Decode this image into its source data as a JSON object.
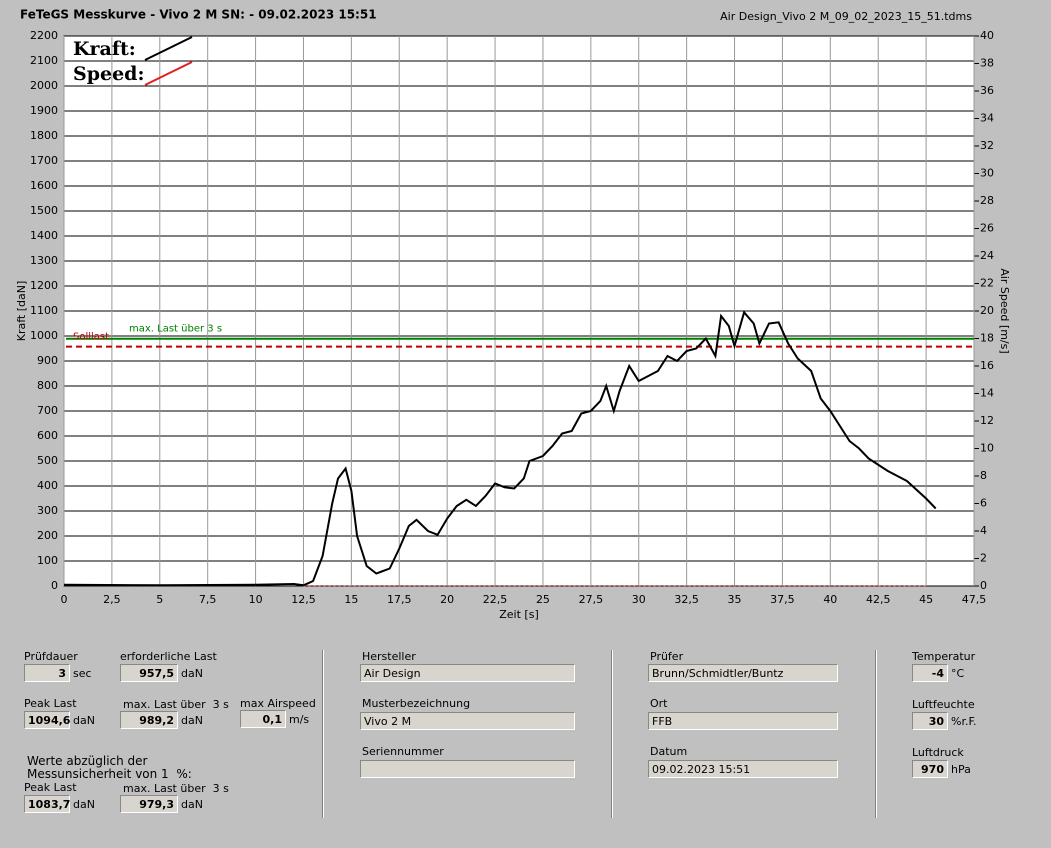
{
  "header": {
    "title": "FeTeGS Messkurve - Vivo 2 M  SN:  - 09.02.2023 15:51",
    "file": "Air Design_Vivo 2 M_09_02_2023_15_51.tdms"
  },
  "chart_data": {
    "type": "line",
    "xlabel": "Zeit [s]",
    "ylabel": "Kraft [daN]",
    "y2label": "Air Speed [m/s]",
    "grid": true,
    "xlim": [
      0,
      47.5
    ],
    "ylim": [
      0,
      2200
    ],
    "y2lim": [
      0,
      40
    ],
    "xticks": [
      0,
      {
        "value": 2.5,
        "label": "2,5"
      },
      5,
      {
        "value": 7.5,
        "label": "7,5"
      },
      10,
      {
        "value": 12.5,
        "label": "12,5"
      },
      15,
      {
        "value": 17.5,
        "label": "17,5"
      },
      20,
      {
        "value": 22.5,
        "label": "22,5"
      },
      25,
      {
        "value": 27.5,
        "label": "27,5"
      },
      30,
      {
        "value": 32.5,
        "label": "32,5"
      },
      35,
      {
        "value": 37.5,
        "label": "37,5"
      },
      40,
      {
        "value": 42.5,
        "label": "42,5"
      },
      45,
      {
        "value": 47.5,
        "label": "47,5"
      }
    ],
    "yticks": [
      0,
      100,
      200,
      300,
      400,
      500,
      600,
      700,
      800,
      900,
      1000,
      1100,
      1200,
      1300,
      1400,
      1500,
      1600,
      1700,
      1800,
      1900,
      2000,
      2100,
      2200
    ],
    "y2ticks": [
      0,
      2,
      4,
      6,
      8,
      10,
      12,
      14,
      16,
      18,
      20,
      22,
      24,
      26,
      28,
      30,
      32,
      34,
      36,
      38,
      40
    ],
    "series": [
      {
        "name": "Kraft:",
        "color": "#000000",
        "x": [
          0,
          5,
          10,
          12,
          12.5,
          13,
          13.5,
          14,
          14.3,
          14.7,
          15,
          15.3,
          15.8,
          16.3,
          17,
          17.5,
          18,
          18.4,
          19,
          19.5,
          20,
          20.5,
          21,
          21.5,
          22,
          22.5,
          23,
          23.5,
          24,
          24.3,
          25,
          25.5,
          26,
          26.5,
          27,
          27.5,
          28,
          28.3,
          28.7,
          29,
          29.5,
          30,
          30.5,
          31,
          31.5,
          32,
          32.5,
          33,
          33.5,
          34,
          34.3,
          34.7,
          35,
          35.5,
          36,
          36.3,
          36.8,
          37.3,
          37.8,
          38.3,
          39,
          39.5,
          40,
          41,
          41.5,
          42,
          43,
          43.5,
          44,
          45,
          45.5
        ],
        "values": [
          5,
          3,
          5,
          8,
          3,
          20,
          120,
          330,
          430,
          470,
          380,
          200,
          80,
          50,
          70,
          150,
          240,
          265,
          220,
          205,
          270,
          320,
          345,
          320,
          360,
          410,
          395,
          390,
          430,
          500,
          520,
          560,
          610,
          620,
          690,
          700,
          740,
          800,
          700,
          780,
          880,
          820,
          840,
          860,
          920,
          900,
          940,
          950,
          990,
          920,
          1080,
          1040,
          960,
          1095,
          1050,
          970,
          1050,
          1055,
          970,
          910,
          860,
          750,
          700,
          580,
          550,
          510,
          460,
          440,
          420,
          350,
          310
        ]
      },
      {
        "name": "Speed:",
        "color": "#e02020",
        "axis": "y2",
        "x": [
          12.5,
          45
        ],
        "values": [
          0,
          0
        ]
      }
    ],
    "reference_lines": [
      {
        "label": "max. Last über  3 s",
        "value": 989.2,
        "color": "#008000"
      },
      {
        "label": "Solllast",
        "value": 957.5,
        "color": "#c00000",
        "style": "dashed"
      }
    ]
  },
  "fields": [
    {
      "label": "Prüfdauer",
      "value": "3",
      "unit": "sec"
    },
    {
      "label": "erforderliche Last",
      "value": "957,5",
      "unit": "daN"
    },
    {
      "label": "Peak Last",
      "value": "1094,6",
      "unit": "daN"
    },
    {
      "label": "max. Last über  3 s",
      "value": "989,2",
      "unit": "daN"
    },
    {
      "label": "max Airspeed",
      "value": "0,1",
      "unit": "m/s"
    },
    {
      "label": "Peak Last",
      "value": "1083,7",
      "unit": "daN"
    },
    {
      "label": "max. Last über  3 s",
      "value": "979,3",
      "unit": "daN"
    },
    {
      "label": "Hersteller",
      "value": "Air Design"
    },
    {
      "label": "Musterbezeichnung",
      "value": "Vivo 2 M"
    },
    {
      "label": "Seriennummer"
    },
    {
      "label": "Prüfer",
      "value": "Brunn/Schmidtler/Buntz"
    },
    {
      "label": "Ort",
      "value": "FFB"
    },
    {
      "label": "Datum",
      "value": "09.02.2023 15:51"
    },
    {
      "label": "Temperatur",
      "value": "-4",
      "unit": "°C"
    },
    {
      "label": "Luftfeuchte",
      "value": "30",
      "unit": "%r.F."
    },
    {
      "label": "Luftdruck",
      "value": "970",
      "unit": "hPa"
    }
  ],
  "note": [
    "Werte abzüglich der",
    "Messunsicherheit von 1  %:"
  ]
}
